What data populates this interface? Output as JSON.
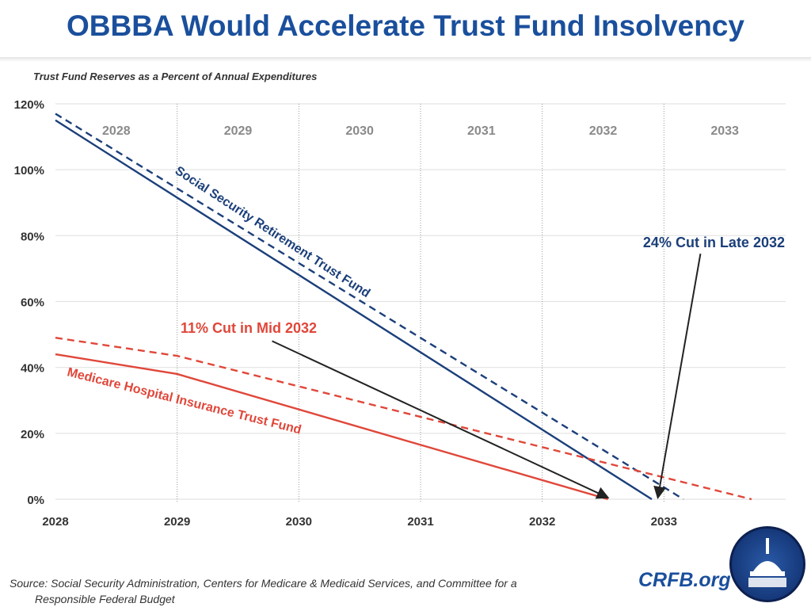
{
  "title": "OBBBA Would Accelerate Trust Fund Insolvency",
  "subtitle": "Trust Fund Reserves as a Percent of Annual Expenditures",
  "source_line1": "Source: Social Security Administration, Centers for Medicare & Medicaid Services, and Committee for a",
  "source_line2": "Responsible Federal Budget",
  "brand": "CRFB.org",
  "logo": "capitol-dome-seal",
  "chart_data": {
    "type": "line",
    "title": "OBBBA Would Accelerate Trust Fund Insolvency",
    "subtitle": "Trust Fund Reserves as a Percent of Annual Expenditures",
    "xlim": [
      2028,
      2034
    ],
    "ylim": [
      0,
      120
    ],
    "x_ticks": [
      "2028",
      "2029",
      "2030",
      "2031",
      "2032",
      "2033"
    ],
    "y_ticks": [
      "0%",
      "20%",
      "40%",
      "60%",
      "80%",
      "100%",
      "120%"
    ],
    "band_labels": [
      "2028",
      "2029",
      "2030",
      "2031",
      "2032",
      "2033"
    ],
    "grid": true,
    "series": [
      {
        "key": "ss_solid",
        "color": "#1b3f7a",
        "style": "solid",
        "points": [
          [
            2028,
            115
          ],
          [
            2032.9,
            0
          ]
        ]
      },
      {
        "key": "ss_dashed",
        "color": "#1b3f7a",
        "style": "dashed",
        "points": [
          [
            2028,
            117
          ],
          [
            2033.16,
            0
          ]
        ]
      },
      {
        "key": "hi_solid",
        "color": "#e0473a",
        "style": "solid",
        "points": [
          [
            2028,
            44
          ],
          [
            2029,
            38
          ],
          [
            2031,
            16.5
          ],
          [
            2032.54,
            0
          ]
        ]
      },
      {
        "key": "hi_dashed",
        "color": "#e0473a",
        "style": "dashed",
        "points": [
          [
            2028,
            49
          ],
          [
            2029,
            43.5
          ],
          [
            2031,
            25
          ],
          [
            2033.72,
            0
          ]
        ]
      }
    ],
    "annotations": {
      "ss_label": "Social Security Retirement Trust Fund",
      "hi_label": "Medicare Hospital Insurance Trust Fund",
      "hi_cut": "11% Cut in Mid 2032",
      "ss_cut": "24% Cut in Late 2032"
    },
    "arrows": [
      {
        "from": [
          2029.78,
          48
        ],
        "to": [
          2032.54,
          0
        ]
      },
      {
        "from": [
          2033.3,
          74.5
        ],
        "to": [
          2032.95,
          0
        ]
      }
    ]
  }
}
